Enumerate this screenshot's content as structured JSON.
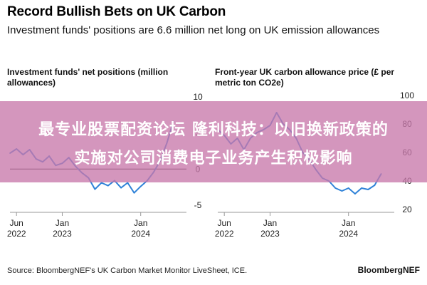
{
  "header": {
    "title": "Record Bullish Bets on UK Carbon",
    "subtitle": "Investment funds' positions are 6.6 million net long on UK emission allowances"
  },
  "overlay": {
    "line1": "最专业股票配资论坛 隆利科技：以旧换新政策的",
    "line2": "实施对公司消费电子业务产生积极影响",
    "color": "#c878aa"
  },
  "footer": {
    "source": "Source: BloombergNEF's UK Carbon Market Monitor LiveSheet, ICE.",
    "brand": "BloombergNEF"
  },
  "colors": {
    "line": "#2f82d8",
    "zero_line": "#111111",
    "grid": "#cfcfcf"
  },
  "chart_data": [
    {
      "type": "line",
      "title": "Investment funds' net positions (million allowances)",
      "x_ticks": [
        {
          "date": "2022-06",
          "label": [
            "Jun",
            "2022"
          ]
        },
        {
          "date": "2023-01",
          "label": [
            "Jan",
            "2023"
          ]
        },
        {
          "date": "2024-01",
          "label": [
            "Jan",
            "2024"
          ]
        }
      ],
      "y_ticks": [
        10,
        5,
        0,
        -5
      ],
      "ylim": [
        -6,
        11
      ],
      "xlim": [
        "2022-05",
        "2024-08"
      ],
      "zero_line": true,
      "grid": false,
      "series": [
        {
          "values": [
            [
              "2022-05",
              2.2
            ],
            [
              "2022-06",
              2.8
            ],
            [
              "2022-07",
              2.0
            ],
            [
              "2022-08",
              2.7
            ],
            [
              "2022-09",
              1.4
            ],
            [
              "2022-10",
              1.0
            ],
            [
              "2022-11",
              1.8
            ],
            [
              "2022-12",
              0.5
            ],
            [
              "2023-01",
              0.8
            ],
            [
              "2023-02",
              1.6
            ],
            [
              "2023-03",
              0.4
            ],
            [
              "2023-04",
              -0.5
            ],
            [
              "2023-05",
              -1.2
            ],
            [
              "2023-06",
              -2.8
            ],
            [
              "2023-07",
              -1.9
            ],
            [
              "2023-08",
              -2.3
            ],
            [
              "2023-09",
              -1.6
            ],
            [
              "2023-10",
              -2.6
            ],
            [
              "2023-11",
              -1.9
            ],
            [
              "2023-12",
              -3.3
            ],
            [
              "2024-01",
              -2.4
            ],
            [
              "2024-02",
              -1.6
            ],
            [
              "2024-03",
              -0.4
            ],
            [
              "2024-04",
              1.2
            ],
            [
              "2024-05",
              3.6
            ],
            [
              "2024-06",
              6.6
            ]
          ]
        }
      ]
    },
    {
      "type": "line",
      "title": "Front-year UK carbon allowance price (£ per metric ton CO2e)",
      "x_ticks": [
        {
          "date": "2022-06",
          "label": [
            "Jun",
            "2022"
          ]
        },
        {
          "date": "2023-01",
          "label": [
            "Jan",
            "2023"
          ]
        },
        {
          "date": "2024-01",
          "label": [
            "Jan",
            "2024"
          ]
        }
      ],
      "y_ticks": [
        100,
        80,
        60,
        40,
        20
      ],
      "ylim": [
        18,
        104
      ],
      "xlim": [
        "2022-05",
        "2024-08"
      ],
      "zero_line": false,
      "grid": false,
      "series": [
        {
          "values": [
            [
              "2022-05",
              76
            ],
            [
              "2022-06",
              72
            ],
            [
              "2022-07",
              66
            ],
            [
              "2022-08",
              70
            ],
            [
              "2022-09",
              62
            ],
            [
              "2022-10",
              70
            ],
            [
              "2022-11",
              74
            ],
            [
              "2022-12",
              76
            ],
            [
              "2023-01",
              79
            ],
            [
              "2023-02",
              88
            ],
            [
              "2023-03",
              80
            ],
            [
              "2023-04",
              76
            ],
            [
              "2023-05",
              70
            ],
            [
              "2023-06",
              60
            ],
            [
              "2023-07",
              55
            ],
            [
              "2023-08",
              48
            ],
            [
              "2023-09",
              42
            ],
            [
              "2023-10",
              40
            ],
            [
              "2023-11",
              35
            ],
            [
              "2023-12",
              33
            ],
            [
              "2024-01",
              35
            ],
            [
              "2024-02",
              31
            ],
            [
              "2024-03",
              35
            ],
            [
              "2024-04",
              34
            ],
            [
              "2024-05",
              37
            ],
            [
              "2024-06",
              45
            ]
          ]
        }
      ]
    }
  ]
}
